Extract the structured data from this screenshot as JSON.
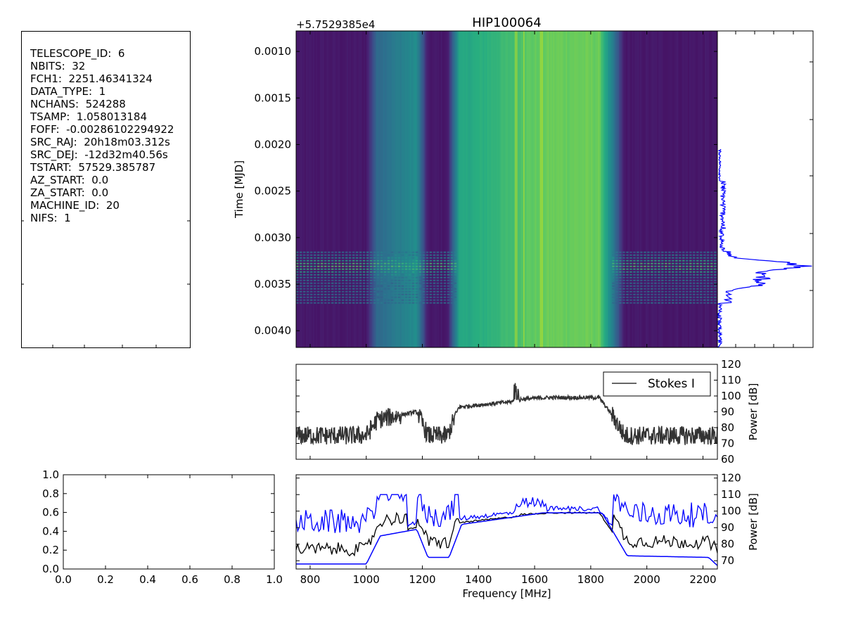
{
  "header": {
    "lines": [
      "TELESCOPE_ID:  6",
      "NBITS:  32",
      "FCH1:  2251.46341324",
      "DATA_TYPE:  1",
      "NCHANS:  524288",
      "TSAMP:  1.058013184",
      "FOFF:  -0.00286102294922",
      "SRC_RAJ:  20h18m03.312s",
      "SRC_DEJ:  -12d32m40.56s",
      "TSTART:  57529.385787",
      "AZ_START:  0.0",
      "ZA_START:  0.0",
      "MACHINE_ID:  20",
      "NIFS:  1"
    ]
  },
  "chart_data": [
    {
      "type": "heatmap",
      "title": "HIP100064",
      "offset_text": "+5.7529385e4",
      "ylabel": "Time [MJD]",
      "xlim": [
        750,
        2251.46
      ],
      "ylim": [
        0.00418,
        0.00078
      ],
      "yticks": [
        "0.0010",
        "0.0015",
        "0.0020",
        "0.0025",
        "0.0030",
        "0.0035",
        "0.0040"
      ],
      "ytick_values": [
        0.001,
        0.0015,
        0.002,
        0.0025,
        0.003,
        0.0035,
        0.004
      ],
      "colormap": "viridis",
      "rfi_burst_time": [
        0.00315,
        0.0037
      ]
    },
    {
      "type": "line",
      "description_of_series": "time series (power vs time) to the right of waterfall",
      "color": "#0000ff",
      "x_range": [
        0.00078,
        0.00418
      ]
    },
    {
      "type": "line",
      "series": [
        {
          "name": "Stokes I",
          "color": "#333333"
        }
      ],
      "ylabel": "Power [dB]",
      "ylim": [
        60,
        120
      ],
      "yticks": [
        "60",
        "70",
        "80",
        "90",
        "100",
        "110",
        "120"
      ],
      "ytick_values": [
        60,
        70,
        80,
        90,
        100,
        110,
        120
      ],
      "xlim": [
        750,
        2251.46
      ],
      "legend": "top-right"
    },
    {
      "type": "line",
      "xlabel": "Frequency [MHz]",
      "ylabel": "Power [dB]",
      "ylim": [
        65,
        122
      ],
      "yticks": [
        "70",
        "80",
        "90",
        "100",
        "110",
        "120"
      ],
      "ytick_values": [
        70,
        80,
        90,
        100,
        110,
        120
      ],
      "xlim": [
        750,
        2251.46
      ],
      "xticks": [
        "800",
        "1000",
        "1200",
        "1400",
        "1600",
        "1800",
        "2000",
        "2200"
      ],
      "xtick_values": [
        800,
        1000,
        1200,
        1400,
        1600,
        1800,
        2000,
        2200
      ],
      "series": [
        {
          "color": "#000000"
        },
        {
          "color": "#0000ff"
        },
        {
          "color": "#0000ff"
        }
      ]
    },
    {
      "type": "line",
      "xlim": [
        0,
        1
      ],
      "ylim": [
        0,
        1
      ],
      "xticks": [
        "0.0",
        "0.2",
        "0.4",
        "0.6",
        "0.8",
        "1.0"
      ],
      "xtick_values": [
        0,
        0.2,
        0.4,
        0.6,
        0.8,
        1.0
      ],
      "yticks": [
        "0.0",
        "0.2",
        "0.4",
        "0.6",
        "0.8",
        "1.0"
      ],
      "ytick_values": [
        0,
        0.2,
        0.4,
        0.6,
        0.8,
        1.0
      ]
    }
  ]
}
